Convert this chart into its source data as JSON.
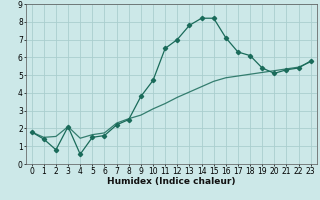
{
  "xlabel": "Humidex (Indice chaleur)",
  "bg_color": "#cce8e8",
  "grid_color": "#aacece",
  "line_color": "#1a6b5a",
  "xlim": [
    -0.5,
    23.5
  ],
  "ylim": [
    0,
    9
  ],
  "xticks": [
    0,
    1,
    2,
    3,
    4,
    5,
    6,
    7,
    8,
    9,
    10,
    11,
    12,
    13,
    14,
    15,
    16,
    17,
    18,
    19,
    20,
    21,
    22,
    23
  ],
  "yticks": [
    0,
    1,
    2,
    3,
    4,
    5,
    6,
    7,
    8,
    9
  ],
  "curve1_x": [
    0,
    1,
    2,
    3,
    4,
    5,
    6,
    7,
    8,
    9,
    10,
    11,
    12,
    13,
    14,
    15,
    16,
    17,
    18,
    19,
    20,
    21,
    22,
    23
  ],
  "curve1_y": [
    1.8,
    1.4,
    0.8,
    2.1,
    0.55,
    1.5,
    1.6,
    2.2,
    2.5,
    3.8,
    4.7,
    6.5,
    7.0,
    7.8,
    8.2,
    8.2,
    7.1,
    6.3,
    6.1,
    5.4,
    5.1,
    5.3,
    5.4,
    5.8
  ],
  "curve2_x": [
    0,
    1,
    2,
    3,
    4,
    5,
    6,
    7,
    8,
    9,
    10,
    11,
    12,
    13,
    14,
    15,
    16,
    17,
    18,
    19,
    20,
    21,
    22,
    23
  ],
  "curve2_y": [
    1.8,
    1.5,
    1.55,
    2.1,
    1.45,
    1.65,
    1.75,
    2.3,
    2.55,
    2.75,
    3.1,
    3.4,
    3.75,
    4.05,
    4.35,
    4.65,
    4.85,
    4.95,
    5.05,
    5.15,
    5.25,
    5.35,
    5.45,
    5.75
  ],
  "xlabel_fontsize": 6.5,
  "tick_fontsize": 5.5,
  "linewidth": 0.9,
  "markersize": 2.2
}
